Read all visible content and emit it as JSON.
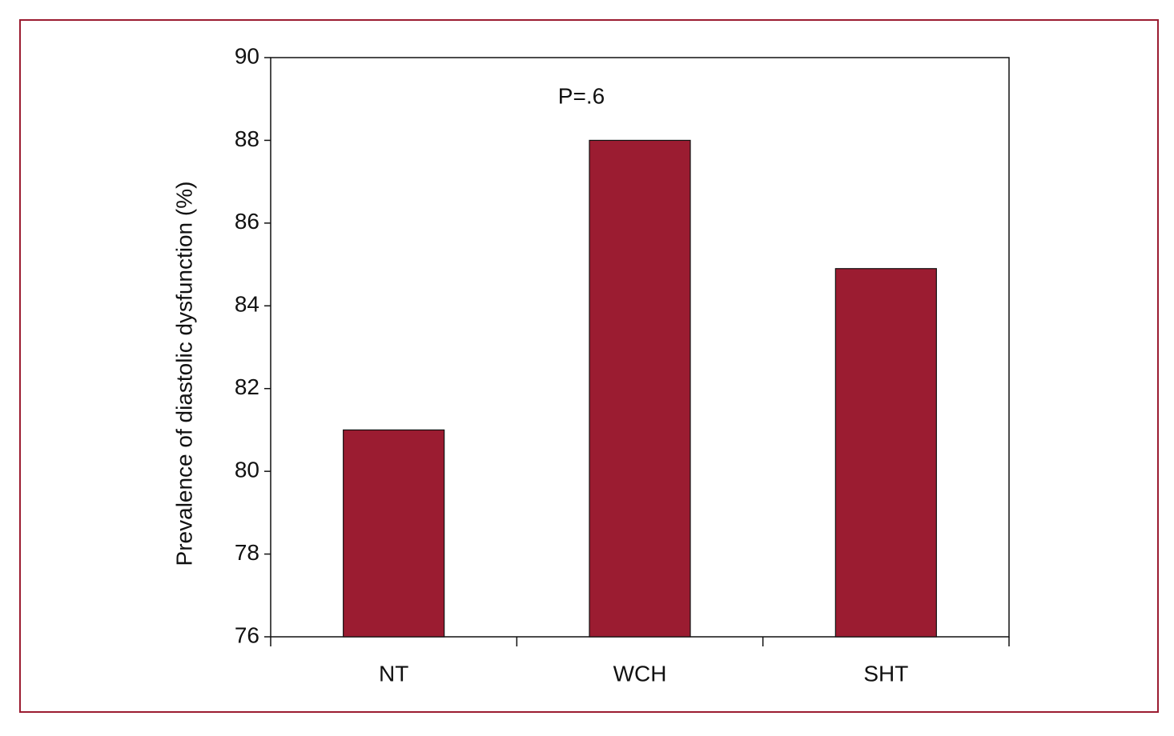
{
  "chart_data": {
    "type": "bar",
    "y_label": "Prevalence of diastolic dysfunction (%)",
    "annotation": "P=.6",
    "categories": [
      "NT",
      "WCH",
      "SHT"
    ],
    "values": [
      81,
      88,
      84.9
    ],
    "color": "#9b1c31",
    "ylim": [
      76,
      90
    ],
    "yticks": [
      76,
      78,
      80,
      82,
      84,
      86,
      88,
      90
    ]
  }
}
